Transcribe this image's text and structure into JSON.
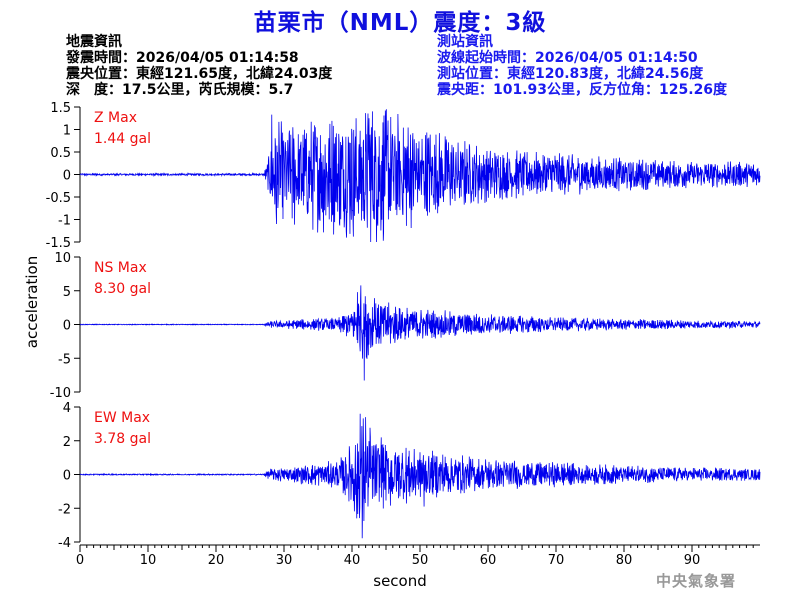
{
  "title": "苗栗市（NML）震度：3級",
  "earthquake_info": {
    "heading": "地震資訊",
    "origin_time": "發震時間：2026/04/05 01:14:58",
    "epicenter": "震央位置：東經121.65度，北緯24.03度",
    "depth_magnitude": "深　度：17.5公里，芮氏規模：5.7"
  },
  "station_info": {
    "heading": "測站資訊",
    "wave_start": "波線起始時間：2026/04/05 01:14:50",
    "station_location": "測站位置：東經120.83度，北緯24.56度",
    "distance_azimuth": "震央距：101.93公里，反方位角：125.26度"
  },
  "agency": "中央氣象署",
  "colors": {
    "trace": "#0000ee",
    "label": "#ee1111",
    "title": "#1010dd",
    "station_text": "#1a1aee"
  },
  "chart_data": {
    "type": "line",
    "xlabel": "second",
    "ylabel": "acceleration",
    "xlim": [
      0,
      100
    ],
    "xticks": [
      0,
      10,
      20,
      30,
      40,
      50,
      60,
      70,
      80,
      90
    ],
    "panels": [
      {
        "component": "Z",
        "label_line1": "Z Max",
        "label_line2": "1.44 gal",
        "ylim": [
          -1.5,
          1.5
        ],
        "yticks": [
          1.5,
          1,
          0.5,
          0,
          -0.5,
          -1,
          -1.5
        ],
        "ytick_labels": [
          "1.5",
          "1",
          "0.5",
          "0",
          "-0.5",
          "-1",
          "-1.5"
        ],
        "envelope_t": [
          0,
          27,
          27.6,
          28.5,
          30,
          33,
          36,
          40,
          44,
          46,
          50,
          55,
          60,
          70,
          80,
          90,
          100
        ],
        "envelope_a": [
          0.02,
          0.02,
          0.25,
          0.9,
          1.0,
          1.0,
          1.1,
          1.2,
          1.3,
          1.2,
          0.9,
          0.7,
          0.5,
          0.4,
          0.3,
          0.25,
          0.22
        ],
        "peaks": [
          [
            28.2,
            1.33
          ],
          [
            28.9,
            -1.1
          ],
          [
            40.2,
            -1.38
          ],
          [
            45.3,
            1.2
          ],
          [
            42.5,
            1.25
          ],
          [
            37.0,
            -1.05
          ],
          [
            34.6,
            1.05
          ]
        ],
        "max_abs": 1.44
      },
      {
        "component": "NS",
        "label_line1": "NS Max",
        "label_line2": "8.30 gal",
        "ylim": [
          -10,
          10
        ],
        "yticks": [
          10,
          5,
          0,
          -5,
          -10
        ],
        "ytick_labels": [
          "10",
          "5",
          "0",
          "-5",
          "-10"
        ],
        "envelope_t": [
          0,
          27,
          28,
          32,
          38,
          40,
          41,
          42,
          43,
          45,
          50,
          55,
          60,
          70,
          80,
          90,
          100
        ],
        "envelope_a": [
          0.05,
          0.05,
          0.4,
          0.6,
          0.9,
          2.0,
          4.0,
          4.5,
          3.5,
          2.8,
          2.0,
          1.6,
          1.3,
          0.9,
          0.7,
          0.5,
          0.4
        ],
        "peaks": [
          [
            41.8,
            -8.3
          ],
          [
            41.3,
            5.8
          ],
          [
            40.8,
            4.8
          ],
          [
            42.2,
            -5.1
          ],
          [
            43.3,
            3.9
          ]
        ],
        "max_abs": 8.3
      },
      {
        "component": "EW",
        "label_line1": "EW Max",
        "label_line2": "3.78 gal",
        "ylim": [
          -4,
          4
        ],
        "yticks": [
          4,
          2,
          0,
          -2,
          -4
        ],
        "ytick_labels": [
          "4",
          "2",
          "0",
          "-2",
          "-4"
        ],
        "envelope_t": [
          0,
          27,
          28,
          32,
          38,
          40,
          41,
          42,
          43,
          45,
          50,
          55,
          60,
          70,
          80,
          90,
          100
        ],
        "envelope_a": [
          0.03,
          0.03,
          0.3,
          0.45,
          0.7,
          1.6,
          2.8,
          2.9,
          2.2,
          1.7,
          1.3,
          1.0,
          0.8,
          0.6,
          0.45,
          0.35,
          0.3
        ],
        "peaks": [
          [
            41.5,
            -3.78
          ],
          [
            41.2,
            3.6
          ],
          [
            42.0,
            3.4
          ],
          [
            40.7,
            -2.6
          ],
          [
            44.3,
            2.2
          ],
          [
            50.6,
            -1.9
          ]
        ],
        "max_abs": 3.78
      }
    ]
  }
}
